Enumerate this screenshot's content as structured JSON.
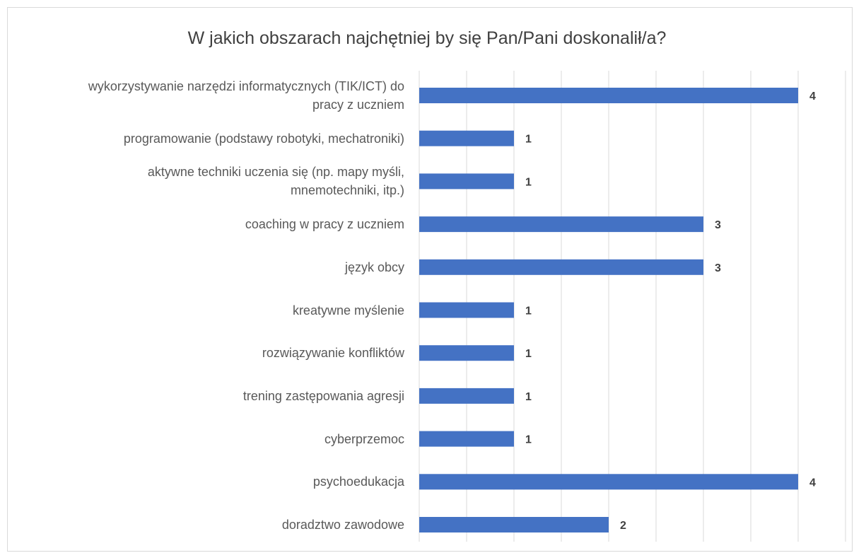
{
  "chart_data": {
    "type": "bar",
    "orientation": "horizontal",
    "title": "W jakich obszarach najchętniej by się Pan/Pani doskonalił/a?",
    "xlabel": "",
    "ylabel": "",
    "xlim": [
      0,
      4.5
    ],
    "grid": true,
    "legend": "none",
    "bar_color": "#4472c4",
    "categories": [
      [
        "wykorzystywanie narzędzi informatycznych (TIK/ICT) do",
        "pracy z uczniem"
      ],
      [
        "programowanie (podstawy robotyki, mechatroniki)"
      ],
      [
        "aktywne techniki uczenia się (np. mapy myśli,",
        "mnemotechniki, itp.)"
      ],
      [
        "coaching w pracy z uczniem"
      ],
      [
        "język obcy"
      ],
      [
        "kreatywne myślenie"
      ],
      [
        "rozwiązywanie konfliktów"
      ],
      [
        "trening zastępowania agresji"
      ],
      [
        "cyberprzemoc"
      ],
      [
        "psychoedukacja"
      ],
      [
        "doradztwo zawodowe"
      ]
    ],
    "values": [
      4,
      1,
      1,
      3,
      3,
      1,
      1,
      1,
      1,
      4,
      2
    ]
  }
}
